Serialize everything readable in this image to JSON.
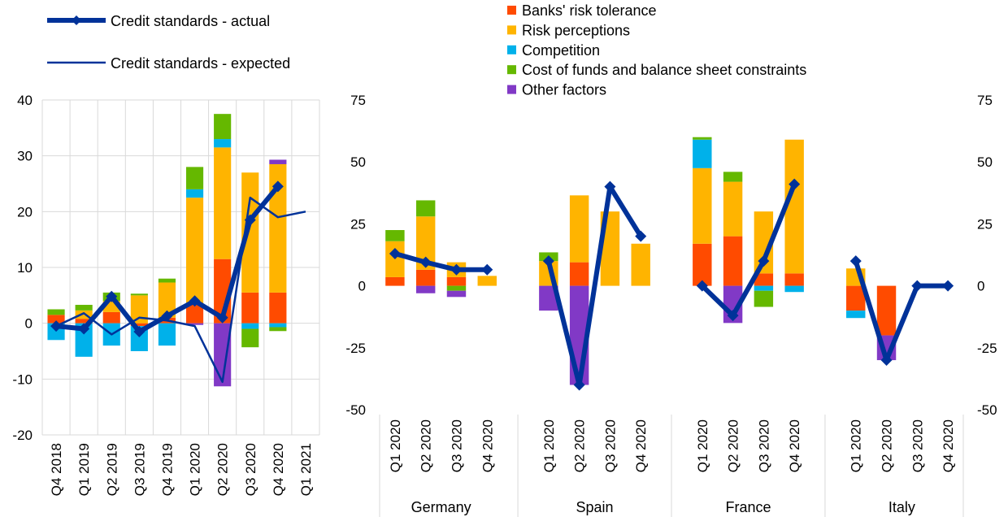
{
  "legend": {
    "actual": "Credit standards - actual",
    "expected": "Credit standards - expected",
    "factors": [
      "Banks' risk tolerance",
      "Risk perceptions",
      "Competition",
      "Cost of funds and balance sheet constraints",
      "Other factors"
    ]
  },
  "colors": {
    "banks_risk_tolerance": "#FF4B00",
    "risk_perceptions": "#FFB400",
    "competition": "#00B1EA",
    "cost_of_funds": "#65B800",
    "other_factors": "#8139C6",
    "actual_line": "#003299",
    "expected_line": "#003299"
  },
  "chart_data": [
    {
      "type": "bar",
      "stacked": true,
      "categories": [
        "Q4 2018",
        "Q1 2019",
        "Q2 2019",
        "Q3 2019",
        "Q4 2019",
        "Q1 2020",
        "Q2 2020",
        "Q3 2020",
        "Q4 2020",
        "Q1 2021"
      ],
      "ylim": [
        -20,
        40
      ],
      "yticks": [
        -20,
        -10,
        0,
        10,
        20,
        30,
        40
      ],
      "grid": true,
      "series": [
        {
          "name": "Banks' risk tolerance",
          "values": [
            1.5,
            0.8,
            2.0,
            -0.5,
            1.0,
            3.5,
            11.5,
            5.5,
            5.5,
            null
          ]
        },
        {
          "name": "Risk perceptions",
          "values": [
            0,
            1.5,
            2.0,
            5.0,
            6.3,
            19.0,
            20.0,
            21.5,
            23.0,
            null
          ]
        },
        {
          "name": "Competition",
          "values": [
            -3.0,
            -6.0,
            -4.0,
            -4.5,
            -4.0,
            1.5,
            1.5,
            -1.0,
            -0.7,
            null
          ]
        },
        {
          "name": "Cost of funds and balance sheet constraints",
          "values": [
            1.0,
            1.0,
            1.5,
            0.3,
            0.7,
            4.0,
            4.5,
            -3.3,
            -0.7,
            null
          ]
        },
        {
          "name": "Other factors",
          "values": [
            0,
            0,
            0,
            0,
            0,
            -0.3,
            -11.3,
            0,
            0.8,
            null
          ]
        }
      ],
      "lines": [
        {
          "name": "Credit standards - actual",
          "values": [
            -0.5,
            -1.0,
            4.8,
            -1.5,
            1.3,
            4.0,
            1.0,
            18.5,
            24.5,
            null
          ]
        },
        {
          "name": "Credit standards - expected",
          "values": [
            -0.5,
            1.8,
            -2.0,
            1.0,
            0.5,
            -0.5,
            -10.5,
            22.5,
            19.0,
            20.0
          ]
        }
      ]
    },
    {
      "type": "bar",
      "stacked": true,
      "groups": [
        "Germany",
        "Spain",
        "France",
        "Italy"
      ],
      "categories": [
        "Q1 2020",
        "Q2 2020",
        "Q3 2020",
        "Q4 2020"
      ],
      "ylim": [
        -50,
        75
      ],
      "yticks": [
        -50,
        -25,
        0,
        25,
        50,
        75
      ],
      "grid": false,
      "series": [
        {
          "name": "Banks' risk tolerance",
          "values": [
            [
              3.5,
              6.5,
              3.5,
              0
            ],
            [
              0,
              9.5,
              0,
              0
            ],
            [
              17.0,
              20.0,
              5.0,
              5.0
            ],
            [
              -10.0,
              -20.0,
              0,
              0
            ]
          ]
        },
        {
          "name": "Risk perceptions",
          "values": [
            [
              14.5,
              21.5,
              6.0,
              4.0
            ],
            [
              10.0,
              27.0,
              30.0,
              17.0
            ],
            [
              30.5,
              22.0,
              25.0,
              54.0
            ],
            [
              7.0,
              0,
              0,
              0
            ]
          ]
        },
        {
          "name": "Competition",
          "values": [
            [
              0,
              0,
              0,
              0
            ],
            [
              0,
              0,
              0,
              0
            ],
            [
              11.5,
              0,
              -2.0,
              -2.5
            ],
            [
              -3.0,
              0,
              0,
              0
            ]
          ]
        },
        {
          "name": "Cost of funds and balance sheet constraints",
          "values": [
            [
              4.5,
              6.5,
              -2.0,
              0
            ],
            [
              3.5,
              0,
              0,
              0
            ],
            [
              1.0,
              4.0,
              -6.5,
              0
            ],
            [
              0,
              0,
              0,
              0
            ]
          ]
        },
        {
          "name": "Other factors",
          "values": [
            [
              0,
              -3.0,
              -2.5,
              0
            ],
            [
              -10.0,
              -40.0,
              0,
              0
            ],
            [
              0,
              -15.0,
              0,
              0
            ],
            [
              0,
              -10.0,
              0,
              0
            ]
          ]
        }
      ],
      "lines": [
        {
          "name": "Credit standards - actual",
          "values": [
            [
              13.0,
              9.5,
              6.5,
              6.5
            ],
            [
              10.0,
              -40.0,
              40.0,
              20.0
            ],
            [
              0,
              -12.0,
              10.0,
              41.0
            ],
            [
              10.0,
              -30.0,
              0,
              0
            ]
          ]
        }
      ]
    }
  ]
}
